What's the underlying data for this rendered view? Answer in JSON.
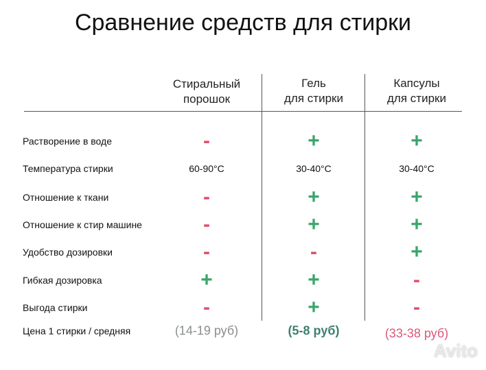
{
  "title": "Сравнение средств для стирки",
  "columns": [
    [
      "Стиральный",
      "порошок"
    ],
    [
      "Гель",
      "для стирки"
    ],
    [
      "Капсулы",
      "для стирки"
    ]
  ],
  "rows": [
    {
      "label": "Растворение в воде",
      "cells": [
        "-",
        "+",
        "+"
      ]
    },
    {
      "label": "Температура стирки",
      "cells": [
        "60-90°C",
        "30-40°C",
        "30-40°C"
      ]
    },
    {
      "label": "Отношение к ткани",
      "cells": [
        "-",
        "+",
        "+"
      ]
    },
    {
      "label": "Отношение к стир машине",
      "cells": [
        "-",
        "+",
        "+"
      ]
    },
    {
      "label": "Удобство дозировки",
      "cells": [
        "-",
        "-",
        "+"
      ]
    },
    {
      "label": "Гибкая дозировка",
      "cells": [
        "+",
        "+",
        "-"
      ]
    },
    {
      "label": "Выгода стирки",
      "cells": [
        "-",
        "+",
        "-"
      ]
    },
    {
      "label": "Цена 1 стирки / средняя",
      "cells": [
        "(14-19 руб)",
        "(5-8 руб)",
        "(33-38 руб)"
      ]
    }
  ],
  "symbol_colors": {
    "+": "#3aa56b",
    "-": "#e24f6c"
  },
  "price_colors": [
    "#8a8f8a",
    "#3d7f6e",
    "#d9577a"
  ],
  "watermark": "Avito"
}
